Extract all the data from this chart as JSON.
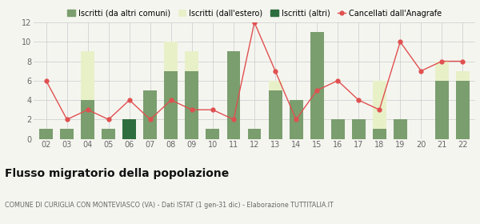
{
  "years": [
    "02",
    "03",
    "04",
    "05",
    "06",
    "07",
    "08",
    "09",
    "10",
    "11",
    "12",
    "13",
    "14",
    "15",
    "16",
    "17",
    "18",
    "19",
    "20",
    "21",
    "22"
  ],
  "iscritti_comuni": [
    1,
    1,
    4,
    1,
    0,
    5,
    7,
    7,
    1,
    9,
    1,
    5,
    4,
    11,
    2,
    2,
    1,
    2,
    0,
    6,
    6
  ],
  "iscritti_estero": [
    0,
    0,
    5,
    0,
    0,
    0,
    3,
    2,
    0,
    0,
    0,
    1,
    0,
    0,
    0,
    0,
    5,
    0,
    0,
    2,
    1
  ],
  "iscritti_altri": [
    0,
    0,
    0,
    0,
    2,
    0,
    0,
    0,
    0,
    0,
    0,
    0,
    0,
    0,
    0,
    0,
    0,
    0,
    0,
    0,
    0
  ],
  "cancellati": [
    6,
    2,
    3,
    2,
    4,
    2,
    4,
    3,
    3,
    2,
    12,
    7,
    2,
    5,
    6,
    4,
    3,
    10,
    7,
    8,
    8
  ],
  "color_comuni": "#7a9e6e",
  "color_estero": "#e8f0c8",
  "color_altri": "#2e6e3e",
  "color_cancellati": "#e05050",
  "background_color": "#f5f5f0",
  "grid_color": "#d0d0d0",
  "ylim": [
    0,
    12
  ],
  "yticks": [
    0,
    2,
    4,
    6,
    8,
    10,
    12
  ],
  "title": "Flusso migratorio della popolazione",
  "subtitle": "COMUNE DI CURIGLIA CON MONTEVIASCO (VA) - Dati ISTAT (1 gen-31 dic) - Elaborazione TUTTITALIA.IT",
  "legend_labels": [
    "Iscritti (da altri comuni)",
    "Iscritti (dall'estero)",
    "Iscritti (altri)",
    "Cancellati dall'Anagrafe"
  ]
}
